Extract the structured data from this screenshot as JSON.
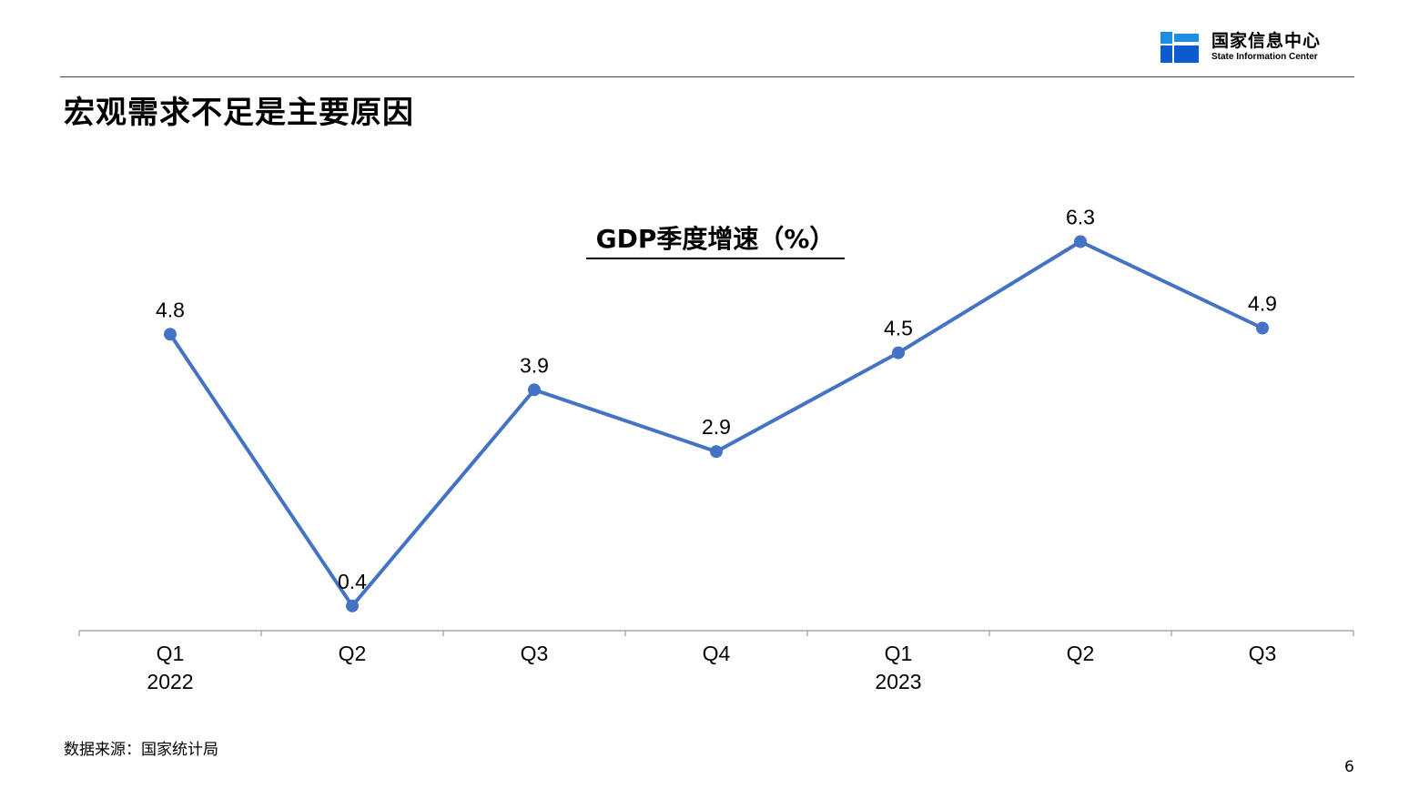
{
  "header": {
    "org_cn": "国家信息中心",
    "org_en": "State Information Center",
    "logo_colors": [
      "#1a8fe3",
      "#0a5bd0"
    ]
  },
  "slide": {
    "title": "宏观需求不足是主要原因",
    "source": "数据来源：国家统计局",
    "page_number": "6"
  },
  "chart_data": {
    "type": "line",
    "title": "GDP季度增速（%）",
    "categories": [
      {
        "quarter": "Q1",
        "year": "2022"
      },
      {
        "quarter": "Q2",
        "year": ""
      },
      {
        "quarter": "Q3",
        "year": ""
      },
      {
        "quarter": "Q4",
        "year": ""
      },
      {
        "quarter": "Q1",
        "year": "2023"
      },
      {
        "quarter": "Q2",
        "year": ""
      },
      {
        "quarter": "Q3",
        "year": ""
      }
    ],
    "series": [
      {
        "values": [
          4.8,
          0.4,
          3.9,
          2.9,
          4.5,
          6.3,
          4.9
        ],
        "color": "#4472c4"
      }
    ],
    "data_labels": [
      "4.8",
      "0.4",
      "3.9",
      "2.9",
      "4.5",
      "6.3",
      "4.9"
    ],
    "ylim": [
      0,
      7
    ],
    "grid": false,
    "legend": "none"
  }
}
